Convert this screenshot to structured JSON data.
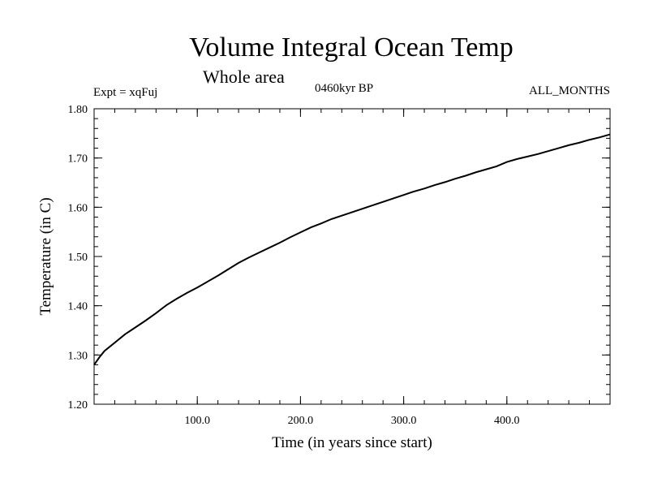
{
  "chart_data": {
    "type": "line",
    "title": "Volume Integral Ocean Temp",
    "subtitle": "Whole area",
    "experiment": "Expt = xqFuj",
    "period": "0460kyr BP",
    "months": "ALL_MONTHS",
    "xlabel": "Time (in years since start)",
    "ylabel": "Temperature (in C)",
    "xlim": [
      0,
      500
    ],
    "ylim": [
      1.2,
      1.8
    ],
    "x_ticks": [
      100,
      200,
      300,
      400
    ],
    "x_tick_labels": [
      "100.0",
      "200.0",
      "300.0",
      "400.0"
    ],
    "y_ticks": [
      1.2,
      1.3,
      1.4,
      1.5,
      1.6,
      1.7,
      1.8
    ],
    "y_tick_labels": [
      "1.20",
      "1.30",
      "1.40",
      "1.50",
      "1.60",
      "1.70",
      "1.80"
    ],
    "series": [
      {
        "name": "Volume Integral Ocean Temp",
        "color": "#000000",
        "x": [
          0,
          5,
          10,
          20,
          30,
          40,
          50,
          60,
          70,
          80,
          90,
          100,
          110,
          120,
          130,
          140,
          150,
          160,
          170,
          180,
          190,
          200,
          210,
          220,
          230,
          240,
          250,
          260,
          270,
          280,
          290,
          300,
          310,
          320,
          330,
          340,
          350,
          360,
          370,
          380,
          390,
          400,
          410,
          420,
          430,
          440,
          450,
          460,
          470,
          480,
          490,
          500
        ],
        "values": [
          1.28,
          1.295,
          1.308,
          1.325,
          1.342,
          1.356,
          1.37,
          1.385,
          1.401,
          1.414,
          1.426,
          1.437,
          1.449,
          1.461,
          1.474,
          1.487,
          1.498,
          1.508,
          1.518,
          1.528,
          1.539,
          1.549,
          1.559,
          1.567,
          1.576,
          1.583,
          1.59,
          1.597,
          1.604,
          1.611,
          1.618,
          1.625,
          1.632,
          1.638,
          1.645,
          1.651,
          1.658,
          1.664,
          1.671,
          1.677,
          1.683,
          1.692,
          1.698,
          1.703,
          1.708,
          1.714,
          1.72,
          1.726,
          1.731,
          1.737,
          1.742,
          1.748
        ]
      }
    ]
  }
}
